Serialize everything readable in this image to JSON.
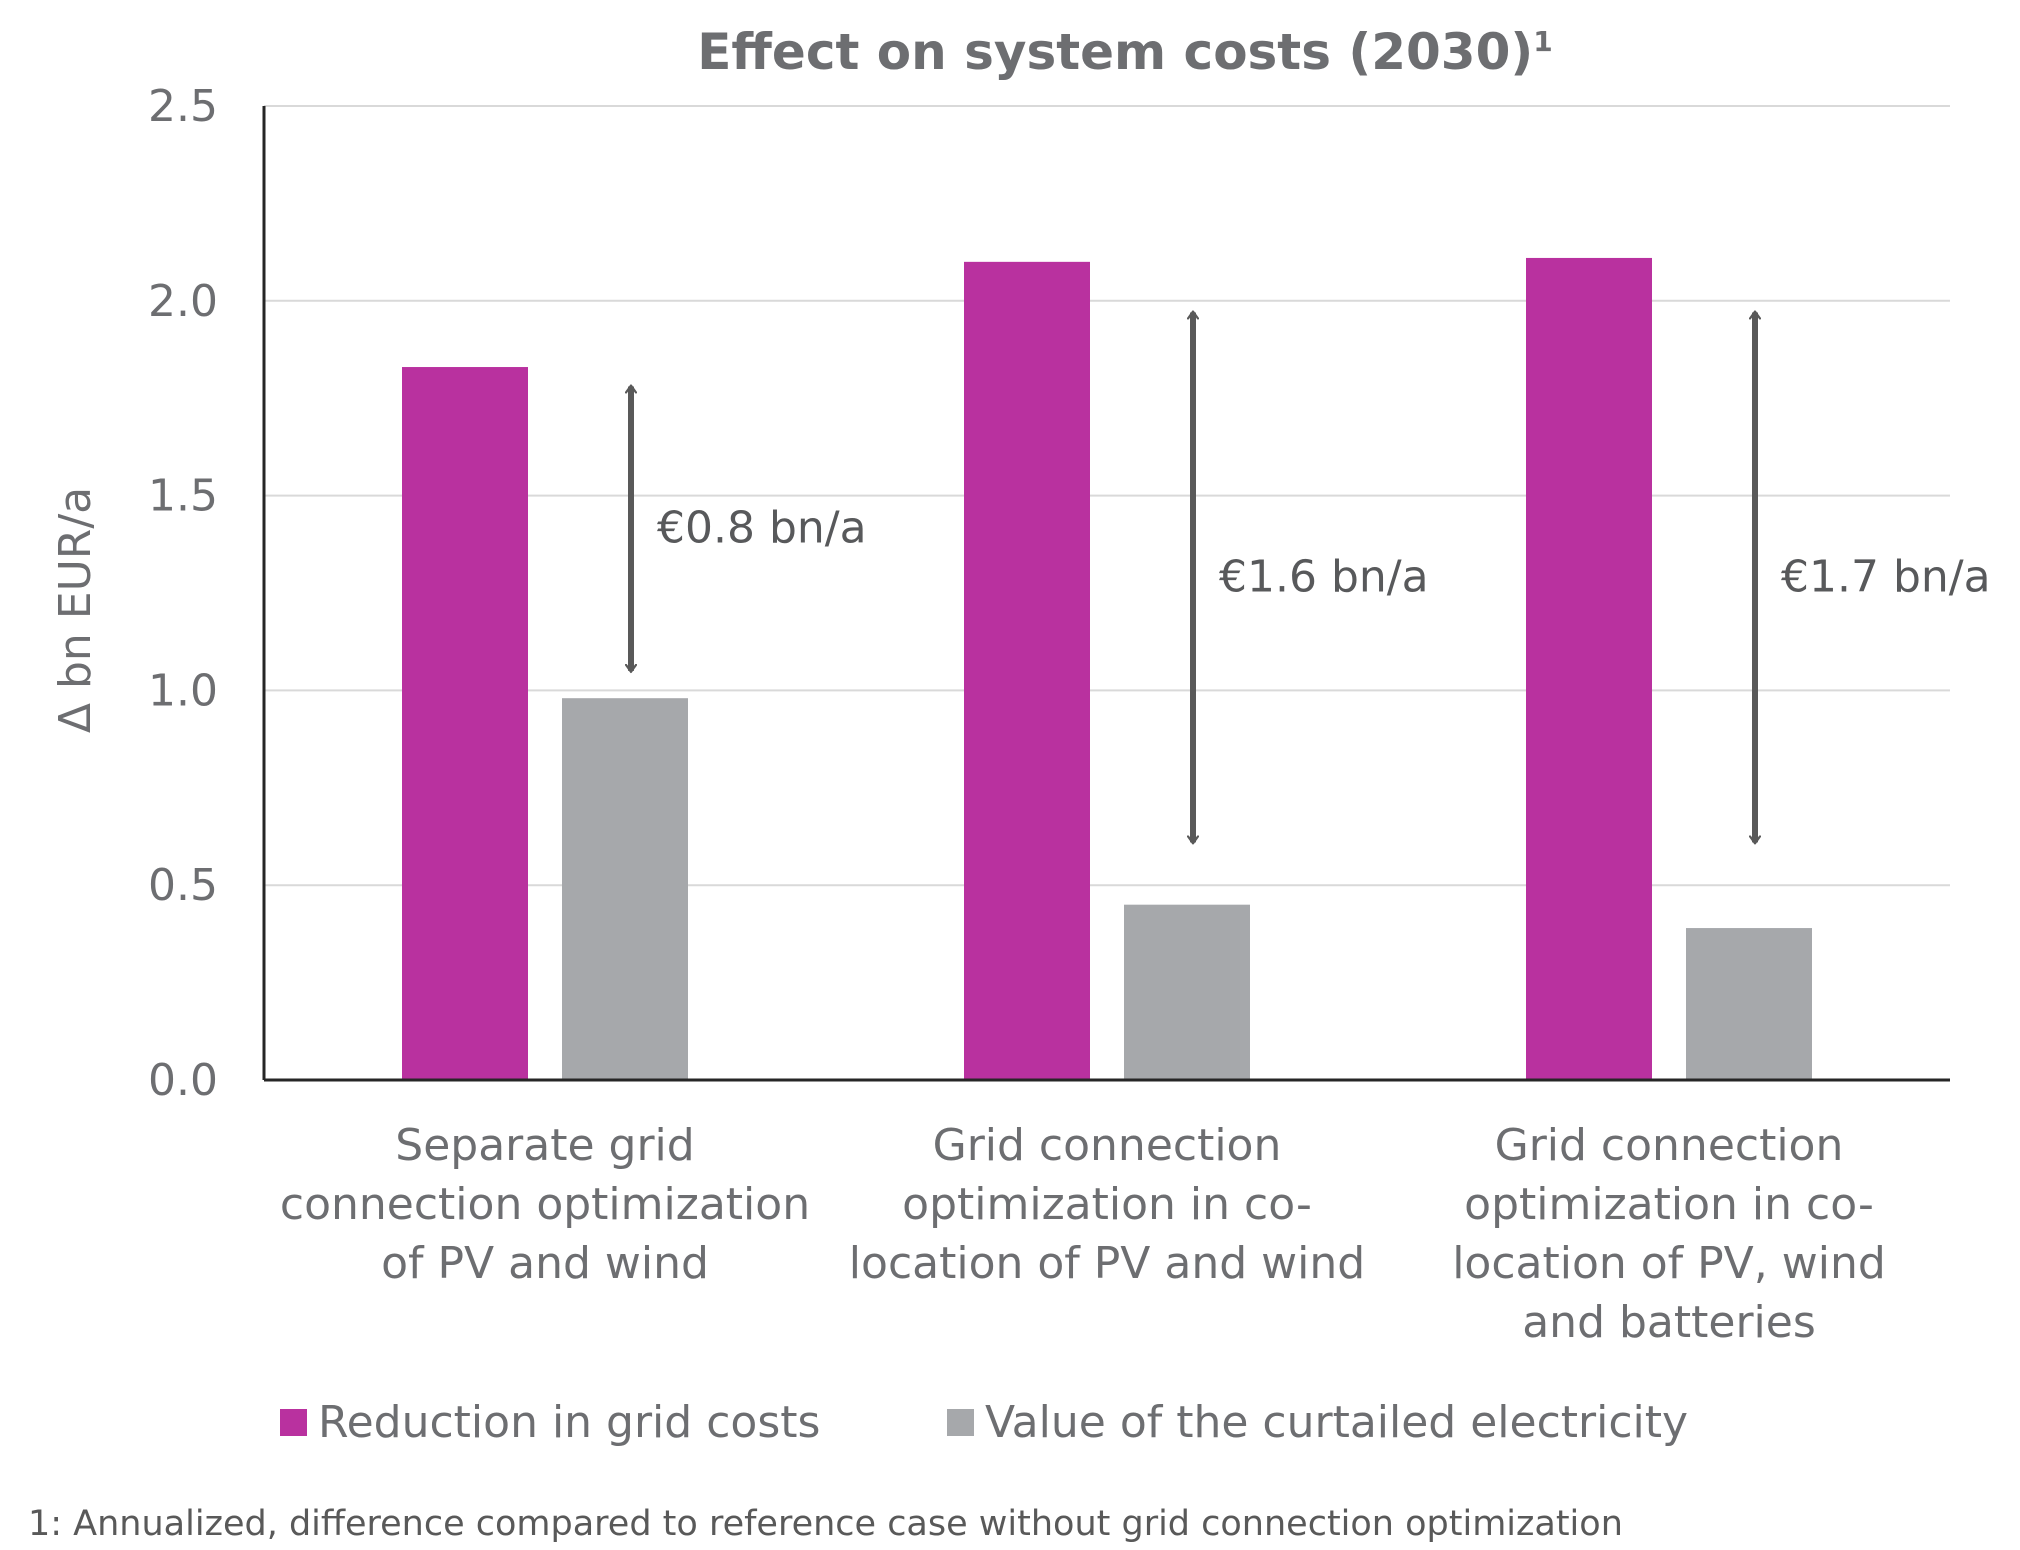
{
  "chart_data": {
    "type": "bar",
    "title": "Effect on system costs (2030)",
    "title_superscript": "1",
    "ylabel": "Δ bn EUR/a",
    "xlabel": "",
    "ylim": [
      0,
      2.5
    ],
    "yticks": [
      "0.0",
      "0.5",
      "1.0",
      "1.5",
      "2.0",
      "2.5"
    ],
    "grid": true,
    "categories": [
      [
        "Separate grid",
        "connection optimization",
        "of PV and wind"
      ],
      [
        "Grid connection",
        "optimization in co-",
        "location of PV and wind"
      ],
      [
        "Grid connection",
        "optimization in co-",
        "location of PV, wind",
        "and batteries"
      ]
    ],
    "series": [
      {
        "name": "Reduction in grid costs",
        "color": "#b9319f",
        "values": [
          1.83,
          2.1,
          2.11
        ]
      },
      {
        "name": "Value of the curtailed electricity",
        "color": "#a6a8ab",
        "values": [
          0.98,
          0.45,
          0.39
        ]
      }
    ],
    "annotations": [
      {
        "label": "€0.8 bn/a",
        "from": 1.78,
        "to": 1.05
      },
      {
        "label": "€1.6 bn/a",
        "from": 1.97,
        "to": 0.61
      },
      {
        "label": "€1.7 bn/a",
        "from": 1.97,
        "to": 0.61
      }
    ],
    "legend_position": "bottom",
    "footnote": "1: Annualized, difference compared to reference case without grid connection optimization"
  }
}
